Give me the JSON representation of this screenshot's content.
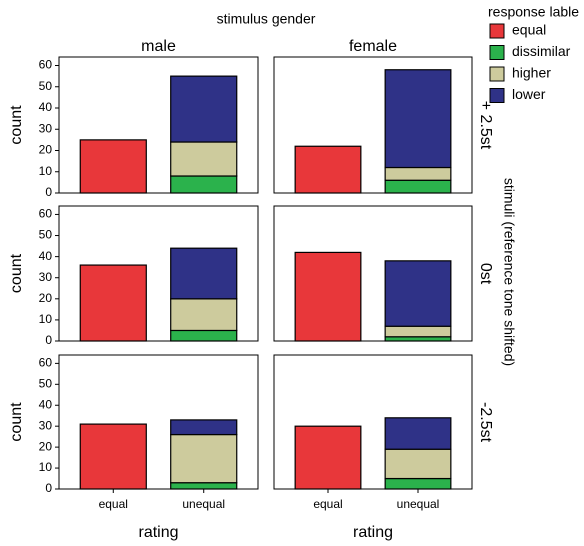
{
  "chart_data": {
    "type": "bar",
    "stacked": true,
    "col_title": "stimulus gender",
    "col_labels": [
      "male",
      "female"
    ],
    "row_title": "stimuli (reference tone shifted)",
    "row_labels": [
      "+ 2.5st",
      "0st",
      "-2.5st"
    ],
    "x_label": "rating",
    "y_label": "count",
    "categories": [
      "equal",
      "unequal"
    ],
    "legend_title": "response lable",
    "series": [
      {
        "name": "equal",
        "color": "#e8373a",
        "values": [
          [
            [
              25,
              null
            ],
            [
              22,
              null
            ]
          ],
          [
            [
              36,
              null
            ],
            [
              42,
              null
            ]
          ],
          [
            [
              31,
              null
            ],
            [
              30,
              null
            ]
          ]
        ]
      },
      {
        "name": "dissimilar",
        "color": "#2bb24c",
        "values": [
          [
            [
              null,
              8
            ],
            [
              null,
              6
            ]
          ],
          [
            [
              null,
              5
            ],
            [
              null,
              2
            ]
          ],
          [
            [
              null,
              3
            ],
            [
              null,
              5
            ]
          ]
        ]
      },
      {
        "name": "higher",
        "color": "#cdcb9d",
        "values": [
          [
            [
              null,
              16
            ],
            [
              null,
              6
            ]
          ],
          [
            [
              null,
              15
            ],
            [
              null,
              5
            ]
          ],
          [
            [
              null,
              23
            ],
            [
              null,
              14
            ]
          ]
        ]
      },
      {
        "name": "lower",
        "color": "#2f3287",
        "values": [
          [
            [
              null,
              31
            ],
            [
              null,
              46
            ]
          ],
          [
            [
              null,
              24
            ],
            [
              null,
              31
            ]
          ],
          [
            [
              null,
              7
            ],
            [
              null,
              15
            ]
          ]
        ]
      }
    ],
    "ylim": [
      0,
      64
    ],
    "yticks": [
      0,
      10,
      20,
      30,
      40,
      50,
      60
    ]
  }
}
